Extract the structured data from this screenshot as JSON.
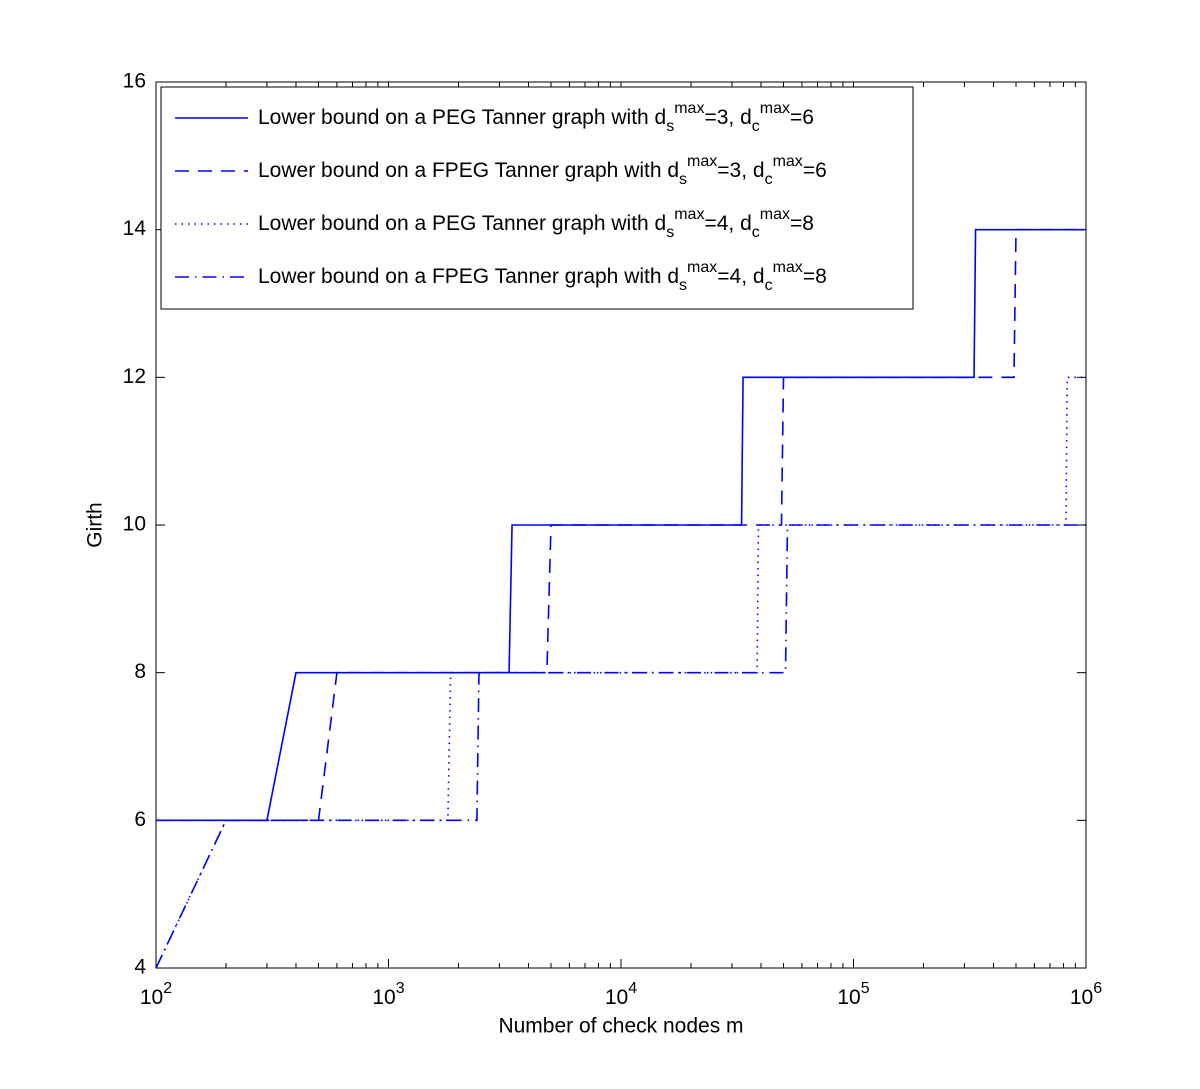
{
  "chart_data": {
    "type": "line",
    "xlabel": "Number of check nodes m",
    "ylabel": "Girth",
    "xscale": "log",
    "xlim": [
      100,
      1000000
    ],
    "ylim": [
      4,
      16
    ],
    "xticks": [
      {
        "value": 100,
        "label": "10^2"
      },
      {
        "value": 1000,
        "label": "10^3"
      },
      {
        "value": 10000,
        "label": "10^4"
      },
      {
        "value": 100000,
        "label": "10^5"
      },
      {
        "value": 1000000,
        "label": "10^6"
      }
    ],
    "yticks": [
      4,
      6,
      8,
      10,
      12,
      14,
      16
    ],
    "legend": "upper left",
    "series": [
      {
        "name": "Lower bound on a PEG Tanner graph with d_s^max=3, d_c^max=6",
        "color": "#0000ff",
        "dash": "solid",
        "x": [
          100,
          300,
          400,
          3300,
          3400,
          33000,
          33500,
          330000,
          335000,
          1000000
        ],
        "values": [
          6,
          6,
          8,
          8,
          10,
          10,
          12,
          12,
          14,
          14
        ]
      },
      {
        "name": "Lower bound on a FPEG Tanner graph with d_s^max=3, d_c^max=6",
        "color": "#0000ff",
        "dash": "dashed",
        "x": [
          100,
          500,
          600,
          4800,
          5000,
          49000,
          50000,
          490000,
          500000,
          1000000
        ],
        "values": [
          6,
          6,
          8,
          8,
          10,
          10,
          12,
          12,
          14,
          14
        ]
      },
      {
        "name": "Lower bound on a PEG Tanner graph with d_s^max=4, d_c^max=8",
        "color": "#0000ff",
        "dash": "dotted",
        "x": [
          100,
          200,
          1800,
          1850,
          38500,
          39000,
          820000,
          830000,
          1000000
        ],
        "values": [
          4,
          6,
          6,
          8,
          8,
          10,
          10,
          12,
          12
        ]
      },
      {
        "name": "Lower bound on a FPEG Tanner graph with d_s^max=4, d_c^max=8",
        "color": "#0000ff",
        "dash": "dashdot",
        "x": [
          100,
          200,
          2400,
          2450,
          51000,
          52000,
          1000000
        ],
        "values": [
          4,
          6,
          6,
          8,
          8,
          10,
          10
        ]
      }
    ]
  }
}
